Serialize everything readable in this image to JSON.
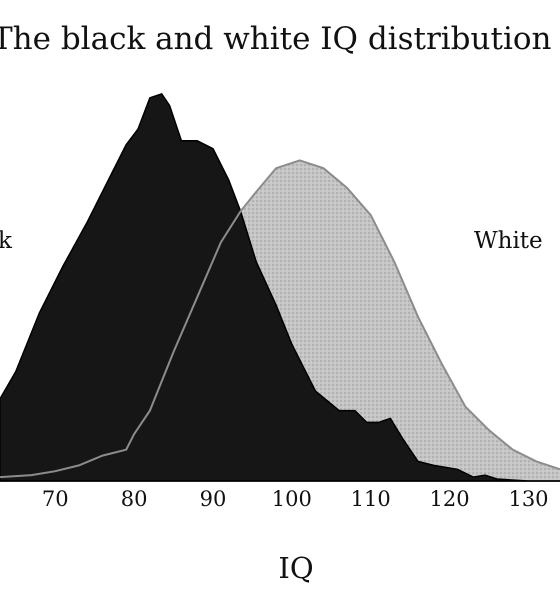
{
  "colors": {
    "black_fill": "#161616",
    "white_fill": "#bdbdbd",
    "white_stroke": "#8c8c8c",
    "text": "#111111"
  },
  "chart_data": {
    "type": "area",
    "title": "The black and white IQ distribution",
    "xlabel": "IQ",
    "ylabel": "",
    "xlim": [
      63,
      134
    ],
    "ylim": [
      0,
      100
    ],
    "xticks": [
      70,
      80,
      90,
      100,
      110,
      120,
      130
    ],
    "tick_labels": [
      "70",
      "80",
      "90",
      "100",
      "110",
      "120",
      "130"
    ],
    "grid": false,
    "legend": "direct labels",
    "series": [
      {
        "name": "Black",
        "visible_label": "k",
        "x": [
          63,
          65,
          68,
          71,
          74,
          77,
          79,
          80.5,
          82,
          83.5,
          84.5,
          86,
          88,
          90,
          92,
          93.5,
          95.5,
          98,
          100,
          103,
          106,
          108,
          109.5,
          111,
          112.5,
          114,
          116,
          118,
          121,
          123,
          124.5,
          126,
          130,
          134
        ],
        "y": [
          21,
          28,
          43,
          55,
          66,
          78,
          86,
          90,
          98,
          99,
          96,
          87,
          87,
          85,
          77,
          69,
          56,
          45,
          35,
          23,
          18,
          18,
          15,
          15,
          16,
          11,
          5,
          4,
          3,
          1,
          1.5,
          0.5,
          0,
          0
        ]
      },
      {
        "name": "White",
        "x": [
          63,
          67,
          70,
          73,
          76,
          79,
          80,
          82,
          85,
          88,
          91,
          93.5,
          95.5,
          98,
          101,
          104,
          107,
          110,
          113,
          116,
          119,
          122,
          125,
          128,
          131,
          134
        ],
        "y": [
          1,
          1.5,
          2.5,
          4,
          6.5,
          8,
          12,
          18,
          33,
          47,
          61,
          69,
          74,
          80,
          82,
          80,
          75,
          68,
          56,
          42,
          30,
          19,
          13,
          8,
          5,
          3
        ]
      }
    ]
  }
}
